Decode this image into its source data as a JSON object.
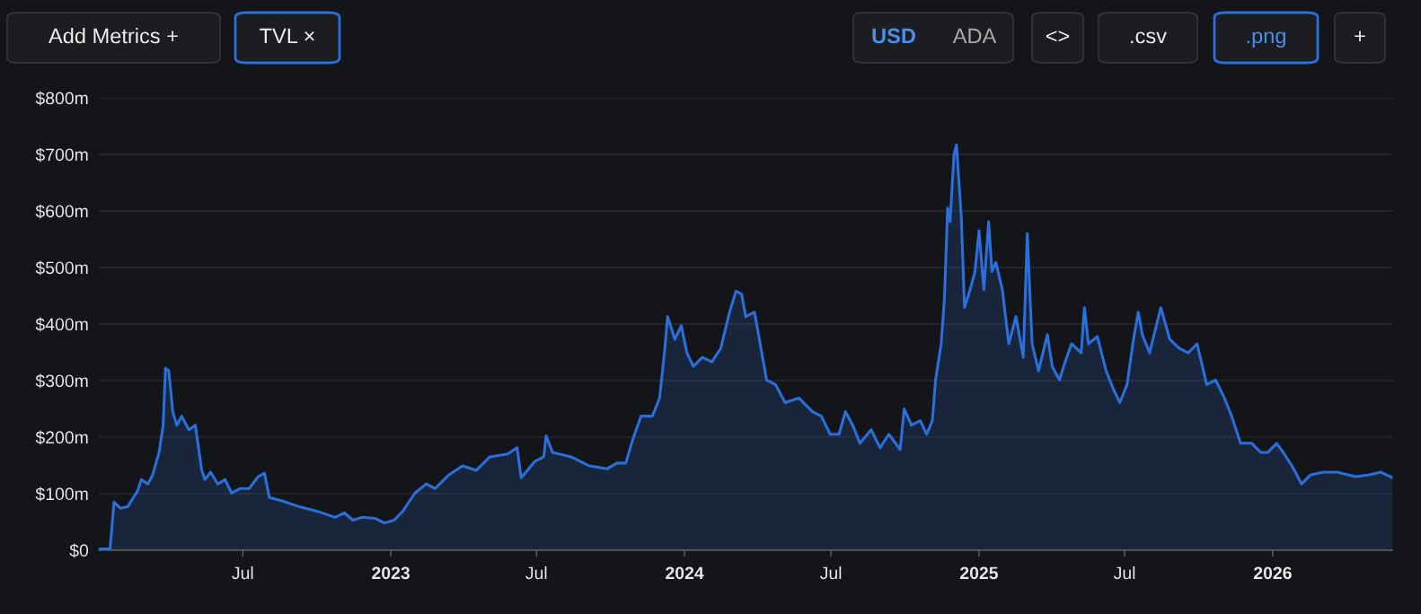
{
  "chart_data": {
    "type": "area",
    "annotations": [
      "Add Metrics +",
      "TVL ×",
      "USD",
      "ADA",
      "<>",
      ".csv",
      ".png",
      "+"
    ],
    "x": [
      "2022-01-03",
      "2022-01-17",
      "2022-01-22",
      "2022-01-30",
      "2022-02-08",
      "2022-02-20",
      "2022-02-25",
      "2022-03-05",
      "2022-03-11",
      "2022-03-19",
      "2022-03-24",
      "2022-03-27",
      "2022-03-31",
      "2022-04-05",
      "2022-04-10",
      "2022-04-16",
      "2022-04-25",
      "2022-05-03",
      "2022-05-11",
      "2022-05-15",
      "2022-05-22",
      "2022-05-31",
      "2022-06-09",
      "2022-06-17",
      "2022-06-28",
      "2022-07-09",
      "2022-07-20",
      "2022-07-28",
      "2022-08-03",
      "2022-08-17",
      "2022-09-09",
      "2022-10-01",
      "2022-10-24",
      "2022-11-04",
      "2022-11-15",
      "2022-11-26",
      "2022-12-13",
      "2022-12-24",
      "2023-01-05",
      "2023-01-16",
      "2023-01-31",
      "2023-02-14",
      "2023-02-25",
      "2023-03-14",
      "2023-03-31",
      "2023-04-17",
      "2023-05-04",
      "2023-05-26",
      "2023-06-07",
      "2023-06-12",
      "2023-06-29",
      "2023-07-10",
      "2023-07-13",
      "2023-07-21",
      "2023-08-13",
      "2023-09-05",
      "2023-09-27",
      "2023-10-09",
      "2023-10-20",
      "2023-10-29",
      "2023-11-08",
      "2023-11-22",
      "2023-12-01",
      "2023-12-07",
      "2023-12-11",
      "2023-12-20",
      "2023-12-28",
      "2024-01-04",
      "2024-01-12",
      "2024-01-23",
      "2024-02-04",
      "2024-02-15",
      "2024-02-26",
      "2024-03-05",
      "2024-03-12",
      "2024-03-17",
      "2024-03-28",
      "2024-04-06",
      "2024-04-12",
      "2024-04-23",
      "2024-05-05",
      "2024-05-22",
      "2024-06-08",
      "2024-06-19",
      "2024-06-30",
      "2024-07-11",
      "2024-07-19",
      "2024-07-28",
      "2024-08-06",
      "2024-08-20",
      "2024-08-31",
      "2024-09-11",
      "2024-09-25",
      "2024-09-30",
      "2024-10-09",
      "2024-10-20",
      "2024-10-28",
      "2024-11-04",
      "2024-11-08",
      "2024-11-15",
      "2024-11-19",
      "2024-11-23",
      "2024-11-26",
      "2024-12-01",
      "2024-12-04",
      "2024-12-10",
      "2024-12-14",
      "2024-12-21",
      "2024-12-27",
      "2025-01-01",
      "2025-01-07",
      "2025-01-13",
      "2025-01-17",
      "2025-01-22",
      "2025-01-30",
      "2025-02-07",
      "2025-02-16",
      "2025-02-25",
      "2025-03-02",
      "2025-03-08",
      "2025-03-16",
      "2025-03-27",
      "2025-04-02",
      "2025-04-11",
      "2025-04-18",
      "2025-04-26",
      "2025-05-08",
      "2025-05-12",
      "2025-05-17",
      "2025-05-28",
      "2025-06-08",
      "2025-06-17",
      "2025-06-25",
      "2025-07-04",
      "2025-07-12",
      "2025-07-18",
      "2025-07-23",
      "2025-08-01",
      "2025-08-15",
      "2025-08-26",
      "2025-09-07",
      "2025-09-18",
      "2025-09-29",
      "2025-10-11",
      "2025-10-22",
      "2025-11-02",
      "2025-11-11",
      "2025-11-22",
      "2025-12-06",
      "2025-12-17",
      "2025-12-26",
      "2026-01-06",
      "2026-01-14",
      "2026-01-25",
      "2026-02-06",
      "2026-02-17",
      "2026-03-05",
      "2026-03-22",
      "2026-04-14",
      "2026-05-01",
      "2026-05-15",
      "2026-05-30"
    ],
    "series": [
      {
        "color": "#2a6fdb",
        "values": [
          2,
          2,
          85,
          74,
          77,
          104,
          125,
          117,
          133,
          173,
          221,
          322,
          317,
          245,
          221,
          237,
          213,
          221,
          141,
          125,
          138,
          117,
          125,
          101,
          109,
          109,
          130,
          136,
          93,
          88,
          77,
          69,
          58,
          66,
          53,
          58,
          56,
          48,
          53,
          69,
          101,
          117,
          109,
          133,
          149,
          141,
          165,
          170,
          181,
          128,
          157,
          165,
          202,
          173,
          165,
          149,
          144,
          154,
          154,
          197,
          237,
          237,
          269,
          349,
          413,
          373,
          397,
          349,
          325,
          341,
          333,
          357,
          421,
          458,
          453,
          413,
          421,
          349,
          301,
          293,
          261,
          269,
          245,
          237,
          205,
          205,
          245,
          221,
          189,
          213,
          181,
          205,
          178,
          250,
          221,
          229,
          205,
          229,
          301,
          365,
          445,
          605,
          581,
          701,
          717,
          589,
          429,
          461,
          493,
          565,
          461,
          581,
          493,
          509,
          461,
          365,
          413,
          341,
          560,
          365,
          317,
          381,
          325,
          301,
          333,
          365,
          349,
          429,
          365,
          378,
          317,
          285,
          261,
          293,
          373,
          421,
          381,
          349,
          429,
          373,
          357,
          349,
          365,
          293,
          301,
          269,
          237,
          189,
          189,
          173,
          173,
          189,
          173,
          149,
          117,
          133,
          138,
          138,
          130,
          133,
          138,
          128
        ]
      }
    ],
    "xlim": [
      "2022-01-03",
      "2026-05-30"
    ],
    "xticks": [
      {
        "value": "2022-07-01",
        "label": "Jul"
      },
      {
        "value": "2023-01-01",
        "label": "2023"
      },
      {
        "value": "2023-07-01",
        "label": "Jul"
      },
      {
        "value": "2024-01-01",
        "label": "2024"
      },
      {
        "value": "2024-07-01",
        "label": "Jul"
      },
      {
        "value": "2025-01-01",
        "label": "2025"
      },
      {
        "value": "2025-07-01",
        "label": "Jul"
      },
      {
        "value": "2026-01-01",
        "label": "2026"
      }
    ],
    "ylim": [
      0,
      800
    ],
    "yticks": [
      {
        "value": 0,
        "label": "$0"
      },
      {
        "value": 100,
        "label": "$100m"
      },
      {
        "value": 200,
        "label": "$200m"
      },
      {
        "value": 300,
        "label": "$300m"
      },
      {
        "value": 400,
        "label": "$400m"
      },
      {
        "value": 500,
        "label": "$500m"
      },
      {
        "value": 600,
        "label": "$600m"
      },
      {
        "value": 700,
        "label": "$700m"
      },
      {
        "value": 800,
        "label": "$800m"
      }
    ],
    "grid": "y",
    "legend": false,
    "line_style": "solid",
    "marker": "none"
  }
}
